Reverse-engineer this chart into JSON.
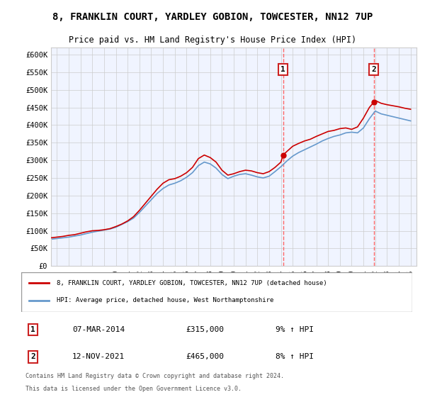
{
  "title_line1": "8, FRANKLIN COURT, YARDLEY GOBION, TOWCESTER, NN12 7UP",
  "title_line2": "Price paid vs. HM Land Registry's House Price Index (HPI)",
  "ylabel_ticks": [
    "£0",
    "£50K",
    "£100K",
    "£150K",
    "£200K",
    "£250K",
    "£300K",
    "£350K",
    "£400K",
    "£450K",
    "£500K",
    "£550K",
    "£600K"
  ],
  "ytick_values": [
    0,
    50000,
    100000,
    150000,
    200000,
    250000,
    300000,
    350000,
    400000,
    450000,
    500000,
    550000,
    600000
  ],
  "ylim": [
    0,
    620000
  ],
  "xlim_start": 1994.5,
  "xlim_end": 2025.5,
  "red_line_color": "#cc0000",
  "blue_line_color": "#6699cc",
  "marker_color_red": "#cc0000",
  "marker_color_blue": "#6699cc",
  "vline_color": "#ff6666",
  "background_color": "#ffffff",
  "plot_bg_color": "#f0f4ff",
  "grid_color": "#cccccc",
  "legend_label_red": "8, FRANKLIN COURT, YARDLEY GOBION, TOWCESTER, NN12 7UP (detached house)",
  "legend_label_blue": "HPI: Average price, detached house, West Northamptonshire",
  "sale1_year": 2014.18,
  "sale1_price": 315000,
  "sale1_label": "1",
  "sale1_date": "07-MAR-2014",
  "sale1_hpi": "9% ↑ HPI",
  "sale2_year": 2021.87,
  "sale2_price": 465000,
  "sale2_label": "2",
  "sale2_date": "12-NOV-2021",
  "sale2_hpi": "8% ↑ HPI",
  "footer_line1": "Contains HM Land Registry data © Crown copyright and database right 2024.",
  "footer_line2": "This data is licensed under the Open Government Licence v3.0.",
  "red_x": [
    1994.5,
    1995.0,
    1995.5,
    1996.0,
    1996.5,
    1997.0,
    1997.5,
    1998.0,
    1998.5,
    1999.0,
    1999.5,
    2000.0,
    2000.5,
    2001.0,
    2001.5,
    2002.0,
    2002.5,
    2003.0,
    2003.5,
    2004.0,
    2004.5,
    2005.0,
    2005.5,
    2006.0,
    2006.5,
    2007.0,
    2007.5,
    2008.0,
    2008.5,
    2009.0,
    2009.5,
    2010.0,
    2010.5,
    2011.0,
    2011.5,
    2012.0,
    2012.5,
    2013.0,
    2013.5,
    2014.0,
    2014.18,
    2014.5,
    2015.0,
    2015.5,
    2016.0,
    2016.5,
    2017.0,
    2017.5,
    2018.0,
    2018.5,
    2019.0,
    2019.5,
    2020.0,
    2020.5,
    2021.0,
    2021.5,
    2021.87,
    2022.0,
    2022.5,
    2023.0,
    2023.5,
    2024.0,
    2024.5,
    2025.0
  ],
  "red_y": [
    80000,
    82000,
    84000,
    87000,
    89000,
    93000,
    97000,
    100000,
    101000,
    103000,
    106000,
    112000,
    119000,
    128000,
    140000,
    158000,
    178000,
    198000,
    218000,
    235000,
    245000,
    248000,
    255000,
    265000,
    280000,
    305000,
    315000,
    308000,
    295000,
    272000,
    258000,
    262000,
    268000,
    272000,
    270000,
    265000,
    262000,
    268000,
    280000,
    295000,
    315000,
    325000,
    340000,
    348000,
    355000,
    360000,
    368000,
    375000,
    382000,
    385000,
    390000,
    392000,
    388000,
    395000,
    420000,
    450000,
    465000,
    470000,
    462000,
    458000,
    455000,
    452000,
    448000,
    445000
  ],
  "blue_x": [
    1994.5,
    1995.0,
    1995.5,
    1996.0,
    1996.5,
    1997.0,
    1997.5,
    1998.0,
    1998.5,
    1999.0,
    1999.5,
    2000.0,
    2000.5,
    2001.0,
    2001.5,
    2002.0,
    2002.5,
    2003.0,
    2003.5,
    2004.0,
    2004.5,
    2005.0,
    2005.5,
    2006.0,
    2006.5,
    2007.0,
    2007.5,
    2008.0,
    2008.5,
    2009.0,
    2009.5,
    2010.0,
    2010.5,
    2011.0,
    2011.5,
    2012.0,
    2012.5,
    2013.0,
    2013.5,
    2014.0,
    2014.5,
    2015.0,
    2015.5,
    2016.0,
    2016.5,
    2017.0,
    2017.5,
    2018.0,
    2018.5,
    2019.0,
    2019.5,
    2020.0,
    2020.5,
    2021.0,
    2021.5,
    2022.0,
    2022.5,
    2023.0,
    2023.5,
    2024.0,
    2024.5,
    2025.0
  ],
  "blue_y": [
    76000,
    78000,
    80000,
    82000,
    85000,
    88000,
    92000,
    96000,
    99000,
    102000,
    105000,
    110000,
    118000,
    126000,
    136000,
    152000,
    170000,
    188000,
    206000,
    220000,
    230000,
    235000,
    242000,
    252000,
    265000,
    285000,
    295000,
    290000,
    278000,
    260000,
    248000,
    255000,
    260000,
    262000,
    258000,
    253000,
    250000,
    255000,
    268000,
    282000,
    298000,
    312000,
    322000,
    330000,
    338000,
    346000,
    355000,
    362000,
    368000,
    372000,
    378000,
    380000,
    378000,
    392000,
    418000,
    440000,
    432000,
    428000,
    424000,
    420000,
    416000,
    412000
  ]
}
